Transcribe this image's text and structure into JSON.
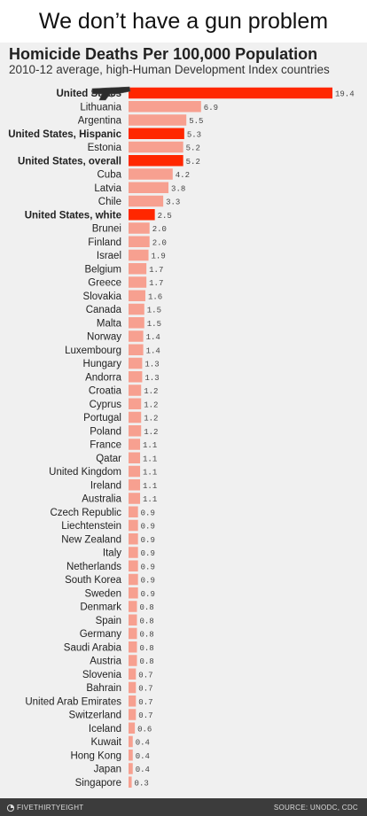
{
  "meme_caption": "We don’t have a gun problem",
  "footer": {
    "brand": "FIVETHIRTYEIGHT",
    "source": "SOURCE: UNODC, CDC"
  },
  "colors": {
    "highlight": "#ff2700",
    "bar": "#f7a090",
    "background": "#f0f0f0"
  },
  "chart_data": {
    "type": "bar",
    "orientation": "horizontal",
    "title": "Homicide Deaths Per 100,000 Population",
    "subtitle": "2010-12 average, high-Human Development Index countries",
    "xlabel": "",
    "ylabel": "",
    "xlim": [
      0,
      19.4
    ],
    "grid": false,
    "legend": "none",
    "categories": [
      "United States",
      "Lithuania",
      "Argentina",
      "United States, Hispanic",
      "Estonia",
      "United States, overall",
      "Cuba",
      "Latvia",
      "Chile",
      "United States, white",
      "Brunei",
      "Finland",
      "Israel",
      "Belgium",
      "Greece",
      "Slovakia",
      "Canada",
      "Malta",
      "Norway",
      "Luxembourg",
      "Hungary",
      "Andorra",
      "Croatia",
      "Cyprus",
      "Portugal",
      "Poland",
      "France",
      "Qatar",
      "United Kingdom",
      "Ireland",
      "Australia",
      "Czech Republic",
      "Liechtenstein",
      "New Zealand",
      "Italy",
      "Netherlands",
      "South Korea",
      "Sweden",
      "Denmark",
      "Spain",
      "Germany",
      "Saudi Arabia",
      "Austria",
      "Slovenia",
      "Bahrain",
      "United Arab Emirates",
      "Switzerland",
      "Iceland",
      "Kuwait",
      "Hong Kong",
      "Japan",
      "Singapore"
    ],
    "values": [
      19.4,
      6.9,
      5.5,
      5.3,
      5.2,
      5.2,
      4.2,
      3.8,
      3.3,
      2.5,
      2.0,
      2.0,
      1.9,
      1.7,
      1.7,
      1.6,
      1.5,
      1.5,
      1.4,
      1.4,
      1.3,
      1.3,
      1.2,
      1.2,
      1.2,
      1.2,
      1.1,
      1.1,
      1.1,
      1.1,
      1.1,
      0.9,
      0.9,
      0.9,
      0.9,
      0.9,
      0.9,
      0.9,
      0.8,
      0.8,
      0.8,
      0.8,
      0.8,
      0.7,
      0.7,
      0.7,
      0.7,
      0.6,
      0.4,
      0.4,
      0.4,
      0.3
    ],
    "value_labels": [
      "19.4",
      "6.9",
      "5.5",
      "5.3",
      "5.2",
      "5.2",
      "4.2",
      "3.8",
      "3.3",
      "2.5",
      "2.0",
      "2.0",
      "1.9",
      "1.7",
      "1.7",
      "1.6",
      "1.5",
      "1.5",
      "1.4",
      "1.4",
      "1.3",
      "1.3",
      "1.2",
      "1.2",
      "1.2",
      "1.2",
      "1.1",
      "1.1",
      "1.1",
      "1.1",
      "1.1",
      "0.9",
      "0.9",
      "0.9",
      "0.9",
      "0.9",
      "0.9",
      "0.9",
      "0.8",
      "0.8",
      "0.8",
      "0.8",
      "0.8",
      "0.7",
      "0.7",
      "0.7",
      "0.7",
      "0.6",
      "0.4",
      "0.4",
      "0.4",
      "0.3"
    ],
    "highlighted": [
      "United States",
      "United States, Hispanic",
      "United States, overall",
      "United States, white"
    ]
  }
}
